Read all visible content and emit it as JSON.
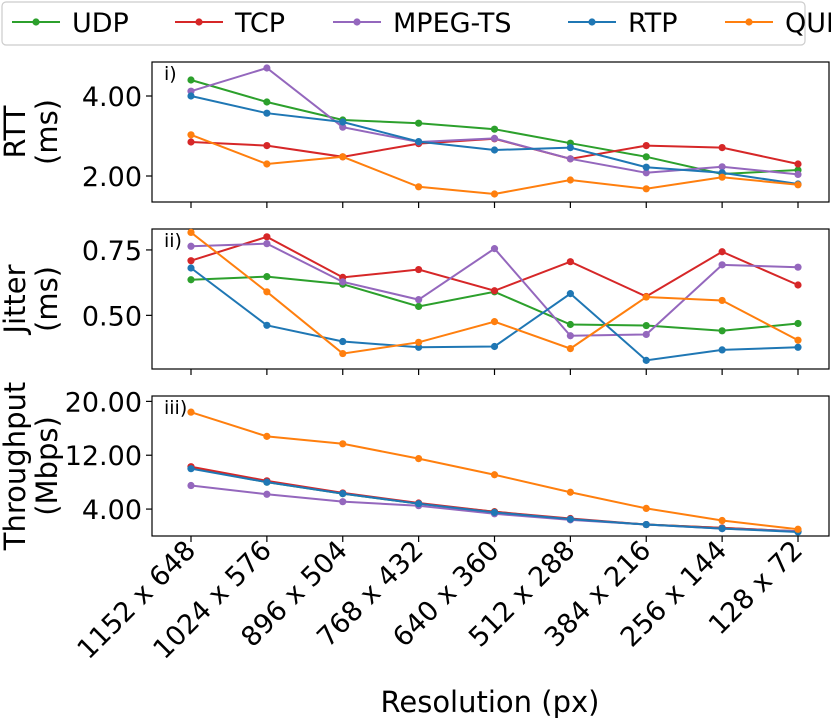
{
  "colors": {
    "UDP": "#2ca02c",
    "TCP": "#d62728",
    "MPEG-TS": "#9467bd",
    "RTP": "#1f77b4",
    "QUIC": "#ff7f0e"
  },
  "chart_data": {
    "type": "line",
    "xlabel": "Resolution (px)",
    "categories": [
      "1152 x 648",
      "1024 x 576",
      "896 x 504",
      "768 x 432",
      "640 x 360",
      "512 x 288",
      "384 x 216",
      "256 x 144",
      "128 x 72"
    ],
    "legend": {
      "placement": "top",
      "entries": [
        "UDP",
        "TCP",
        "MPEG-TS",
        "RTP",
        "QUIC"
      ]
    },
    "panels": [
      {
        "id": "rtt",
        "label": "i)",
        "ylabel_line1": "RTT",
        "ylabel_line2": "(ms)",
        "ylim": [
          1.35,
          4.85
        ],
        "yticks": [
          2.0,
          4.0
        ],
        "ytick_labels": [
          "2.00",
          "4.00"
        ],
        "series": [
          {
            "name": "UDP",
            "values": [
              4.4,
              3.85,
              3.4,
              3.32,
              3.17,
              2.82,
              2.48,
              2.05,
              2.15
            ]
          },
          {
            "name": "TCP",
            "values": [
              2.85,
              2.76,
              2.48,
              2.81,
              2.93,
              2.43,
              2.76,
              2.71,
              2.3
            ]
          },
          {
            "name": "MPEG-TS",
            "values": [
              4.12,
              4.7,
              3.22,
              2.85,
              2.94,
              2.43,
              2.08,
              2.23,
              2.04
            ]
          },
          {
            "name": "RTP",
            "values": [
              4.0,
              3.57,
              3.35,
              2.86,
              2.65,
              2.71,
              2.22,
              2.08,
              1.8
            ]
          },
          {
            "name": "QUIC",
            "values": [
              3.03,
              2.3,
              2.48,
              1.73,
              1.55,
              1.9,
              1.68,
              1.97,
              1.78
            ]
          }
        ]
      },
      {
        "id": "jitter",
        "label": "ii)",
        "ylabel_line1": "Jitter",
        "ylabel_line2": "(ms)",
        "ylim": [
          0.295,
          0.83
        ],
        "yticks": [
          0.5,
          0.75
        ],
        "ytick_labels": [
          "0.50",
          "0.75"
        ],
        "series": [
          {
            "name": "UDP",
            "values": [
              0.636,
              0.648,
              0.619,
              0.534,
              0.59,
              0.465,
              0.461,
              0.441,
              0.469
            ]
          },
          {
            "name": "TCP",
            "values": [
              0.709,
              0.8,
              0.645,
              0.675,
              0.594,
              0.705,
              0.572,
              0.743,
              0.616
            ]
          },
          {
            "name": "MPEG-TS",
            "values": [
              0.764,
              0.774,
              0.628,
              0.56,
              0.755,
              0.422,
              0.427,
              0.693,
              0.684
            ]
          },
          {
            "name": "RTP",
            "values": [
              0.681,
              0.462,
              0.4,
              0.378,
              0.381,
              0.583,
              0.328,
              0.368,
              0.378
            ]
          },
          {
            "name": "QUIC",
            "values": [
              0.817,
              0.59,
              0.354,
              0.397,
              0.476,
              0.373,
              0.57,
              0.557,
              0.405
            ]
          }
        ]
      },
      {
        "id": "throughput",
        "label": "iii)",
        "ylabel_line1": "Throughput",
        "ylabel_line2": "(Mbps)",
        "ylim": [
          0.0,
          20.8
        ],
        "yticks": [
          4.0,
          12.0,
          20.0
        ],
        "ytick_labels": [
          "4.00",
          "12.00",
          "20.00"
        ],
        "series": [
          {
            "name": "UDP",
            "values": [
              10.1,
              8.0,
              6.3,
              4.8,
              3.6,
              2.5,
              1.7,
              1.2,
              0.7
            ]
          },
          {
            "name": "TCP",
            "values": [
              10.3,
              8.2,
              6.4,
              4.9,
              3.6,
              2.6,
              1.7,
              1.2,
              0.7
            ]
          },
          {
            "name": "MPEG-TS",
            "values": [
              7.5,
              6.2,
              5.1,
              4.5,
              3.3,
              2.4,
              1.7,
              1.1,
              0.7
            ]
          },
          {
            "name": "RTP",
            "values": [
              10.0,
              8.0,
              6.3,
              4.8,
              3.5,
              2.5,
              1.7,
              1.1,
              0.6
            ]
          },
          {
            "name": "QUIC",
            "values": [
              18.4,
              14.8,
              13.7,
              11.5,
              9.1,
              6.5,
              4.1,
              2.3,
              1.0
            ]
          }
        ]
      }
    ]
  }
}
